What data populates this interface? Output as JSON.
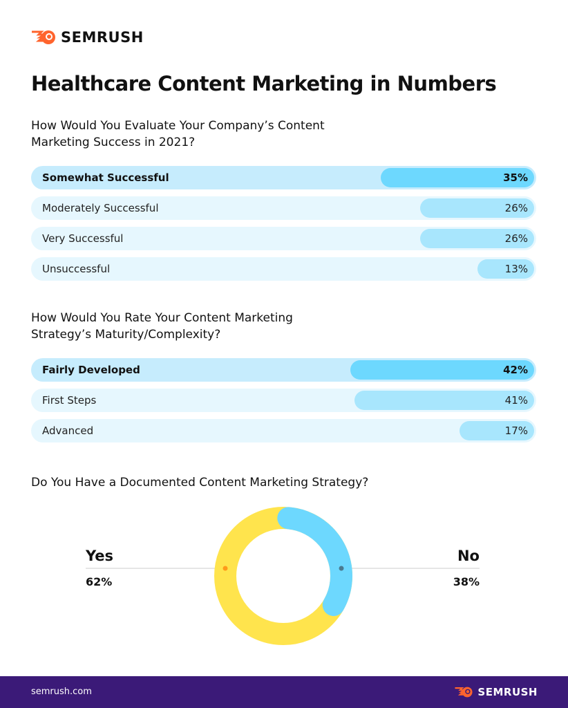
{
  "brand": {
    "name": "SEMRUSH",
    "site": "semrush.com",
    "accent": "#ff642d",
    "footer_bg": "#3b1a78"
  },
  "title": "Healthcare Content Marketing in Numbers",
  "chart_data": [
    {
      "type": "bar",
      "title": "How Would You Evaluate Your Company’s Content Marketing Success in 2021?",
      "categories": [
        "Somewhat Successful",
        "Moderately Successful",
        "Very Successful",
        "Unsuccessful"
      ],
      "values": [
        35,
        26,
        26,
        13
      ],
      "labels": [
        "35%",
        "26%",
        "26%",
        "13%"
      ],
      "xlim": [
        0,
        100
      ]
    },
    {
      "type": "bar",
      "title": "How Would You Rate Your Content Marketing Strategy’s Maturity/Complexity?",
      "categories": [
        "Fairly Developed",
        "First Steps",
        "Advanced"
      ],
      "values": [
        42,
        41,
        17
      ],
      "labels": [
        "42%",
        "41%",
        "17%"
      ],
      "xlim": [
        0,
        100
      ]
    },
    {
      "type": "pie",
      "title": "Do You Have a Documented Content Marketing Strategy?",
      "categories": [
        "Yes",
        "No"
      ],
      "values": [
        62,
        38
      ],
      "labels": [
        "62%",
        "38%"
      ],
      "colors": [
        "#ffe44d",
        "#6dd8fe"
      ]
    }
  ]
}
